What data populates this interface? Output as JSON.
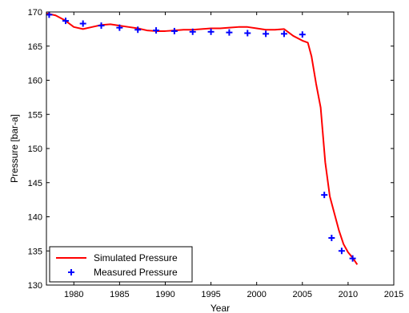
{
  "chart_data": {
    "type": "line",
    "xlabel": "Year",
    "ylabel": "Pressure [bar-a]",
    "xlim": [
      1977,
      2015
    ],
    "ylim": [
      130,
      170
    ],
    "x_ticks": [
      1980,
      1985,
      1990,
      1995,
      2000,
      2005,
      2010,
      2015
    ],
    "y_ticks": [
      130,
      135,
      140,
      145,
      150,
      155,
      160,
      165,
      170
    ],
    "grid": false,
    "legend_position": "bottom-left",
    "series": [
      {
        "name": "Simulated Pressure",
        "style": "line",
        "color": "#ff0000",
        "points": [
          [
            1977,
            169.8
          ],
          [
            1978,
            169.5
          ],
          [
            1979,
            168.8
          ],
          [
            1980,
            167.8
          ],
          [
            1981,
            167.5
          ],
          [
            1982,
            167.8
          ],
          [
            1983,
            168.1
          ],
          [
            1984,
            168.2
          ],
          [
            1985,
            168.0
          ],
          [
            1986,
            167.8
          ],
          [
            1987,
            167.6
          ],
          [
            1988,
            167.3
          ],
          [
            1989,
            167.2
          ],
          [
            1990,
            167.2
          ],
          [
            1991,
            167.3
          ],
          [
            1992,
            167.4
          ],
          [
            1993,
            167.4
          ],
          [
            1994,
            167.5
          ],
          [
            1995,
            167.6
          ],
          [
            1996,
            167.6
          ],
          [
            1997,
            167.7
          ],
          [
            1998,
            167.8
          ],
          [
            1999,
            167.8
          ],
          [
            2000,
            167.6
          ],
          [
            2001,
            167.4
          ],
          [
            2002,
            167.4
          ],
          [
            2003,
            167.5
          ],
          [
            2004,
            166.5
          ],
          [
            2005,
            165.8
          ],
          [
            2005.6,
            165.5
          ],
          [
            2006,
            163.5
          ],
          [
            2006.5,
            159.5
          ],
          [
            2007,
            156.0
          ],
          [
            2007.5,
            148.0
          ],
          [
            2008,
            143.0
          ],
          [
            2008.5,
            140.5
          ],
          [
            2009,
            138.0
          ],
          [
            2009.5,
            136.0
          ],
          [
            2010,
            134.8
          ],
          [
            2010.5,
            134.0
          ],
          [
            2011,
            133.0
          ]
        ]
      },
      {
        "name": "Measured Pressure",
        "style": "marker",
        "marker": "+",
        "color": "#0000ff",
        "points": [
          [
            1977.3,
            169.6
          ],
          [
            1979.1,
            168.7
          ],
          [
            1981,
            168.3
          ],
          [
            1983,
            168.0
          ],
          [
            1985,
            167.7
          ],
          [
            1987,
            167.4
          ],
          [
            1989,
            167.3
          ],
          [
            1991,
            167.2
          ],
          [
            1993,
            167.1
          ],
          [
            1995,
            167.1
          ],
          [
            1997,
            167.0
          ],
          [
            1999,
            166.9
          ],
          [
            2001,
            166.8
          ],
          [
            2003,
            166.8
          ],
          [
            2005,
            166.7
          ],
          [
            2007.4,
            143.2
          ],
          [
            2008.2,
            136.9
          ],
          [
            2009.3,
            135.0
          ],
          [
            2010.5,
            133.9
          ]
        ]
      }
    ]
  }
}
